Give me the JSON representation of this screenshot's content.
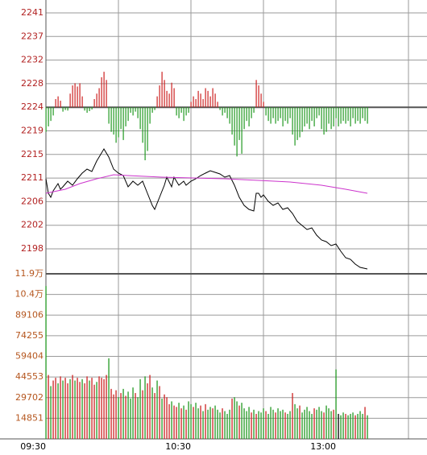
{
  "chart_data": {
    "type": "line",
    "xlim": [
      0,
      157.67
    ],
    "xticks": [
      {
        "value": 0,
        "label": "09:30"
      },
      {
        "value": 60,
        "label": "10:30"
      },
      {
        "value": 120,
        "label": "13:00"
      }
    ],
    "xgrid": [
      0,
      30,
      60,
      90,
      120,
      150
    ],
    "ylim": [
      2193.11,
      2243.24
    ],
    "yticks": [
      {
        "value": 2197.68,
        "label": "2198"
      },
      {
        "value": 2202.0,
        "label": "2202"
      },
      {
        "value": 2206.32,
        "label": "2206"
      },
      {
        "value": 2210.64,
        "label": "2211"
      },
      {
        "value": 2214.96,
        "label": "2215"
      },
      {
        "value": 2219.28,
        "label": "2219"
      },
      {
        "value": 2223.6,
        "label": "2224"
      },
      {
        "value": 2227.92,
        "label": "2228"
      },
      {
        "value": 2232.24,
        "label": "2232"
      },
      {
        "value": 2236.56,
        "label": "2237"
      },
      {
        "value": 2240.88,
        "label": "2241"
      }
    ],
    "baseline": 2223.6,
    "series": [
      {
        "color": "#000000",
        "x": [
          0,
          1,
          2,
          3,
          5,
          6,
          7,
          9,
          11,
          13,
          15,
          17,
          19,
          21,
          23,
          24,
          26,
          28,
          30,
          32,
          34,
          36,
          38,
          40,
          42,
          44,
          45,
          47,
          49,
          50,
          52,
          53,
          55,
          57,
          58,
          60,
          62,
          64,
          66,
          68,
          70,
          72,
          74,
          76,
          78,
          80,
          82,
          84,
          86,
          87,
          88,
          89,
          90,
          92,
          94,
          96,
          98,
          100,
          102,
          104,
          106,
          108,
          110,
          112,
          114,
          116,
          118,
          120,
          122,
          124,
          126,
          128,
          130,
          133
        ],
        "values": [
          2210.51,
          2207.85,
          2207.11,
          2208.29,
          2209.62,
          2208.59,
          2209.03,
          2210.06,
          2209.33,
          2210.51,
          2211.54,
          2212.28,
          2211.83,
          2213.75,
          2215.22,
          2215.96,
          2214.49,
          2212.28,
          2211.54,
          2211.1,
          2209.03,
          2210.06,
          2209.33,
          2210.06,
          2207.85,
          2205.64,
          2204.9,
          2207.11,
          2209.33,
          2210.8,
          2209.03,
          2210.8,
          2209.33,
          2210.06,
          2209.33,
          2210.06,
          2210.51,
          2211.1,
          2211.54,
          2211.98,
          2211.69,
          2211.39,
          2210.8,
          2211.1,
          2209.33,
          2207.11,
          2205.64,
          2204.9,
          2204.61,
          2207.85,
          2207.85,
          2207.11,
          2207.56,
          2206.38,
          2205.64,
          2206.08,
          2204.9,
          2205.2,
          2204.17,
          2202.69,
          2201.95,
          2201.22,
          2201.51,
          2200.18,
          2199.3,
          2199.0,
          2198.27,
          2198.56,
          2197.24,
          2196.06,
          2195.76,
          2194.88,
          2194.29,
          2193.99
        ]
      },
      {
        "color": "#cc33cc",
        "x": [
          0,
          8,
          14,
          21,
          28,
          34,
          48,
          61,
          74,
          88,
          101,
          114,
          124,
          133
        ],
        "values": [
          2207.85,
          2208.59,
          2209.62,
          2210.51,
          2211.24,
          2211.1,
          2210.8,
          2210.65,
          2210.51,
          2210.21,
          2209.92,
          2209.33,
          2208.59,
          2207.85
        ]
      }
    ],
    "pressure": {
      "up_color": "#cc2222",
      "down_color": "#229922",
      "values": [
        -4.5,
        -3.5,
        -2.5,
        -1.5,
        1.5,
        2.0,
        1.2,
        -0.8,
        -0.5,
        -0.6,
        2.5,
        4.0,
        4.4,
        3.8,
        4.4,
        2.0,
        -0.6,
        -1.0,
        -0.7,
        -0.4,
        1.5,
        2.5,
        3.5,
        5.5,
        6.5,
        5.0,
        -3.0,
        -4.5,
        -5.0,
        -6.5,
        -5.5,
        -4.0,
        -6.0,
        -3.5,
        -2.5,
        -1.0,
        -1.5,
        -0.8,
        -2.0,
        -4.0,
        -6.5,
        -9.7,
        -8.0,
        -3.0,
        -1.0,
        -0.5,
        2.0,
        4.0,
        6.5,
        5.0,
        3.0,
        2.5,
        4.5,
        3.5,
        -1.5,
        -2.0,
        -1.0,
        -2.5,
        -1.5,
        -1.0,
        1.0,
        2.0,
        1.5,
        3.0,
        2.5,
        1.5,
        3.5,
        3.0,
        2.0,
        3.5,
        2.5,
        1.0,
        -0.5,
        -1.5,
        -1.0,
        -2.0,
        -3.0,
        -5.0,
        -7.0,
        -9.0,
        -6.0,
        -8.5,
        -4.0,
        -2.5,
        -3.5,
        -2.0,
        -1.0,
        5.0,
        4.0,
        2.5,
        1.0,
        -1.5,
        -2.5,
        -3.0,
        -2.0,
        -3.0,
        -2.5,
        -2.0,
        -3.5,
        -2.5,
        -3.0,
        -2.0,
        -5.0,
        -7.0,
        -6.0,
        -5.5,
        -4.5,
        -3.5,
        -3.0,
        -4.0,
        -2.5,
        -3.5,
        -2.0,
        -1.5,
        -4.0,
        -5.0,
        -4.5,
        -3.0,
        -4.0,
        -3.5,
        -2.0,
        -3.5,
        -3.0,
        -2.5,
        -3.0,
        -2.5,
        -3.5,
        -2.0,
        -3.0,
        -2.5,
        -3.0,
        -2.0,
        -2.5,
        -3.0
      ]
    },
    "volume": {
      "type": "bar",
      "ylim": [
        0,
        118808
      ],
      "yticks": [
        14851,
        29702,
        44553,
        59404,
        74255,
        89106,
        {
          "value": 103957,
          "label": "10.4万"
        },
        {
          "value": 118808,
          "label": "11.9万"
        }
      ],
      "palette": {
        "r": "#cc2222",
        "g": "#229922",
        "k": "#000000"
      },
      "colors": "grgrrgrgrrgrgrrgrrgrrgrrrrgrrrgrgrgggrggrgrrgrgrgrrrgrrgrgrggrggrgrggrgggrgggrggrggggrgrgggrgggrgggrggrggrgggggrgggrgggrgkggrgggrgggrgr",
      "values": [
        110000,
        46000,
        38000,
        42000,
        44000,
        40000,
        45000,
        42000,
        44000,
        40000,
        43000,
        46000,
        42000,
        44000,
        41000,
        43000,
        40000,
        45000,
        42000,
        44000,
        39000,
        41000,
        45000,
        44000,
        43000,
        46000,
        58000,
        36000,
        32000,
        35000,
        30000,
        33000,
        36000,
        31000,
        34000,
        29000,
        37000,
        33000,
        30000,
        43000,
        35000,
        45000,
        40000,
        46000,
        37000,
        33000,
        42000,
        38000,
        29000,
        32000,
        30000,
        25000,
        27000,
        24000,
        23000,
        26000,
        22000,
        24000,
        21000,
        27000,
        25000,
        23000,
        26000,
        22000,
        24000,
        20000,
        25000,
        21000,
        23000,
        22000,
        24000,
        21000,
        19000,
        22000,
        20000,
        18000,
        21000,
        29000,
        30000,
        27000,
        24000,
        26000,
        22000,
        20000,
        23000,
        19000,
        21000,
        18000,
        20000,
        19000,
        22000,
        20000,
        18000,
        23000,
        21000,
        19000,
        22000,
        20000,
        21000,
        19000,
        18000,
        20000,
        33000,
        25000,
        22000,
        24000,
        19000,
        21000,
        23000,
        20000,
        18000,
        22000,
        21000,
        23000,
        20000,
        19000,
        24000,
        22000,
        20000,
        21000,
        50000,
        18000,
        17000,
        19000,
        18000,
        17000,
        18000,
        19000,
        17000,
        18000,
        20000,
        18000,
        23000,
        17000
      ]
    }
  }
}
